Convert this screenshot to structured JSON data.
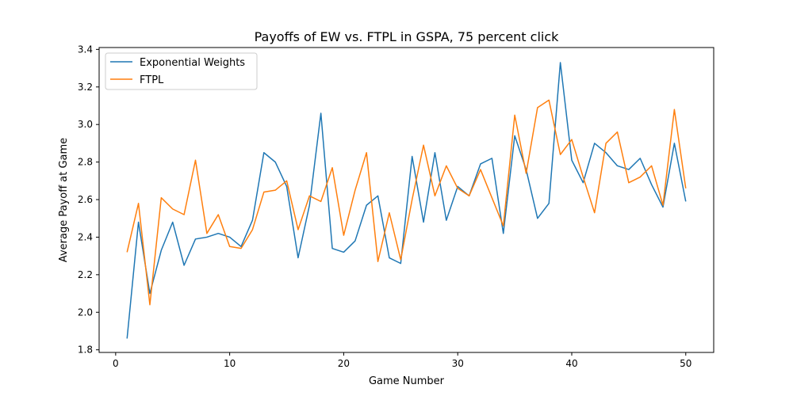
{
  "chart_data": {
    "type": "line",
    "title": "Payoffs of EW vs. FTPL in GSPA, 75 percent click",
    "xlabel": "Game Number",
    "ylabel": "Average Payoff at Game",
    "xlim": [
      -1.45,
      52.45
    ],
    "ylim": [
      1.786,
      3.41
    ],
    "xticks": [
      0,
      10,
      20,
      30,
      40,
      50
    ],
    "yticks": [
      1.8,
      2.0,
      2.2,
      2.4,
      2.6,
      2.8,
      3.0,
      3.2,
      3.4
    ],
    "ytick_labels": [
      "1.8",
      "2.0",
      "2.2",
      "2.4",
      "2.6",
      "2.8",
      "3.0",
      "3.2",
      "3.4"
    ],
    "grid": false,
    "legend_position": "top-left",
    "x": [
      1,
      2,
      3,
      4,
      5,
      6,
      7,
      8,
      9,
      10,
      11,
      12,
      13,
      14,
      15,
      16,
      17,
      18,
      19,
      20,
      21,
      22,
      23,
      24,
      25,
      26,
      27,
      28,
      29,
      30,
      31,
      32,
      33,
      34,
      35,
      36,
      37,
      38,
      39,
      40,
      41,
      42,
      43,
      44,
      45,
      46,
      47,
      48,
      49,
      50
    ],
    "series": [
      {
        "name": "Exponential Weights",
        "color": "#1f77b4",
        "values": [
          1.86,
          2.48,
          2.1,
          2.33,
          2.48,
          2.25,
          2.39,
          2.4,
          2.42,
          2.4,
          2.35,
          2.49,
          2.85,
          2.8,
          2.67,
          2.29,
          2.57,
          3.06,
          2.34,
          2.32,
          2.38,
          2.57,
          2.62,
          2.29,
          2.26,
          2.83,
          2.48,
          2.85,
          2.49,
          2.67,
          2.62,
          2.79,
          2.82,
          2.42,
          2.94,
          2.76,
          2.5,
          2.58,
          3.33,
          2.81,
          2.69,
          2.9,
          2.85,
          2.78,
          2.76,
          2.82,
          2.68,
          2.56,
          2.9,
          2.59
        ]
      },
      {
        "name": "FTPL",
        "color": "#ff7f0e",
        "values": [
          2.32,
          2.58,
          2.04,
          2.61,
          2.55,
          2.52,
          2.81,
          2.42,
          2.52,
          2.35,
          2.34,
          2.44,
          2.64,
          2.65,
          2.7,
          2.44,
          2.62,
          2.59,
          2.77,
          2.41,
          2.65,
          2.85,
          2.27,
          2.53,
          2.28,
          2.6,
          2.89,
          2.62,
          2.78,
          2.66,
          2.62,
          2.76,
          2.61,
          2.46,
          3.05,
          2.74,
          3.09,
          3.13,
          2.84,
          2.92,
          2.72,
          2.53,
          2.9,
          2.96,
          2.69,
          2.72,
          2.78,
          2.57,
          3.08,
          2.66
        ]
      }
    ]
  }
}
